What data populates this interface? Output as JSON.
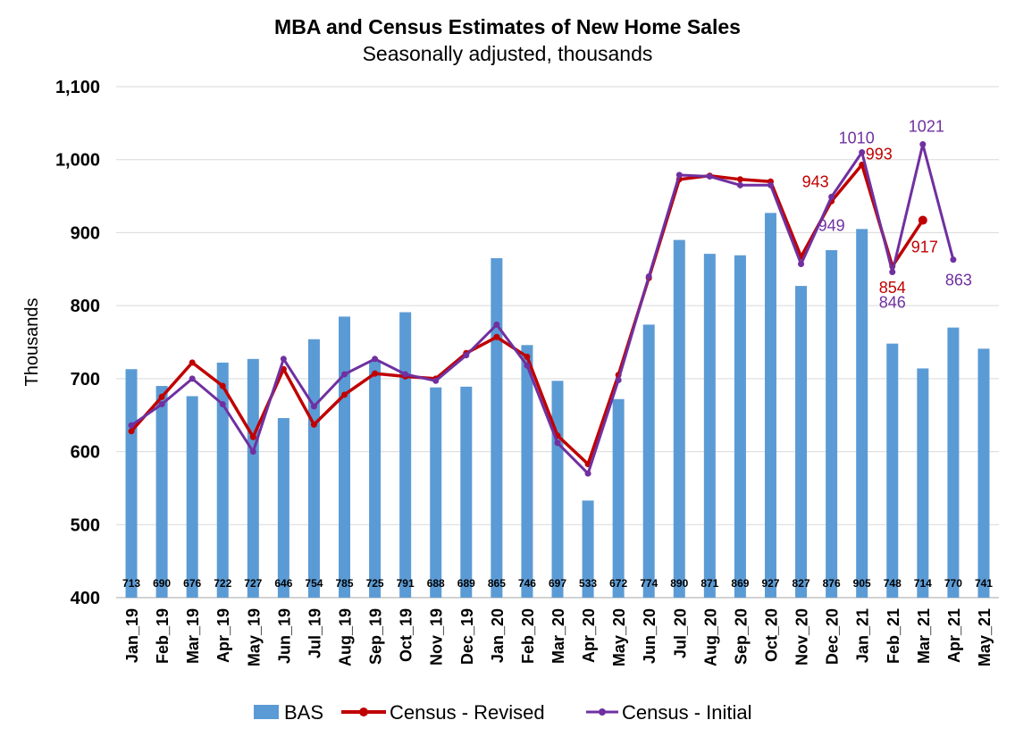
{
  "chart_data": {
    "type": "bar",
    "title": "MBA and Census Estimates of New Home Sales",
    "subtitle": "Seasonally adjusted, thousands",
    "xlabel": "",
    "ylabel": "Thousands",
    "ylim": [
      400,
      1100
    ],
    "yticks": [
      "400",
      "500",
      "600",
      "700",
      "800",
      "900",
      "1,000",
      "1,100"
    ],
    "ytick_values": [
      400,
      500,
      600,
      700,
      800,
      900,
      1000,
      1100
    ],
    "grid": true,
    "legend_position": "bottom",
    "categories": [
      "Jan_19",
      "Feb_19",
      "Mar_19",
      "Apr_19",
      "May_19",
      "Jun_19",
      "Jul_19",
      "Aug_19",
      "Sep_19",
      "Oct_19",
      "Nov_19",
      "Dec_19",
      "Jan_20",
      "Feb_20",
      "Mar_20",
      "Apr_20",
      "May_20",
      "Jun_20",
      "Jul_20",
      "Aug_20",
      "Sep_20",
      "Oct_20",
      "Nov_20",
      "Dec_20",
      "Jan_21",
      "Feb_21",
      "Mar_21",
      "Apr_21",
      "May_21"
    ],
    "series": [
      {
        "name": "BAS",
        "type": "bar",
        "color": "#5B9BD5",
        "values": [
          713,
          690,
          676,
          722,
          727,
          646,
          754,
          785,
          725,
          791,
          688,
          689,
          865,
          746,
          697,
          533,
          672,
          774,
          890,
          871,
          869,
          927,
          827,
          876,
          905,
          748,
          714,
          770,
          741
        ]
      },
      {
        "name": "Census - Revised",
        "type": "line",
        "color": "#C00000",
        "values": [
          628,
          675,
          722,
          690,
          620,
          713,
          637,
          678,
          707,
          703,
          700,
          735,
          757,
          730,
          622,
          583,
          705,
          838,
          973,
          978,
          973,
          970,
          867,
          943,
          993,
          854,
          917,
          null,
          null
        ]
      },
      {
        "name": "Census - Initial",
        "type": "line",
        "color": "#7030A0",
        "values": [
          636,
          665,
          700,
          665,
          600,
          727,
          662,
          706,
          727,
          706,
          697,
          732,
          774,
          718,
          612,
          570,
          698,
          840,
          979,
          977,
          965,
          965,
          857,
          949,
          1010,
          846,
          1021,
          863,
          null
        ]
      }
    ],
    "annotations": [
      {
        "text": "943",
        "series": 1,
        "index": 23,
        "color": "#C00000"
      },
      {
        "text": "993",
        "series": 1,
        "index": 24,
        "color": "#C00000"
      },
      {
        "text": "854",
        "series": 1,
        "index": 25,
        "color": "#C00000"
      },
      {
        "text": "917",
        "series": 1,
        "index": 26,
        "color": "#C00000"
      },
      {
        "text": "949",
        "series": 2,
        "index": 23,
        "color": "#7030A0"
      },
      {
        "text": "1010",
        "series": 2,
        "index": 24,
        "color": "#7030A0"
      },
      {
        "text": "846",
        "series": 2,
        "index": 25,
        "color": "#7030A0"
      },
      {
        "text": "1021",
        "series": 2,
        "index": 26,
        "color": "#7030A0"
      },
      {
        "text": "863",
        "series": 2,
        "index": 27,
        "color": "#7030A0"
      }
    ]
  }
}
